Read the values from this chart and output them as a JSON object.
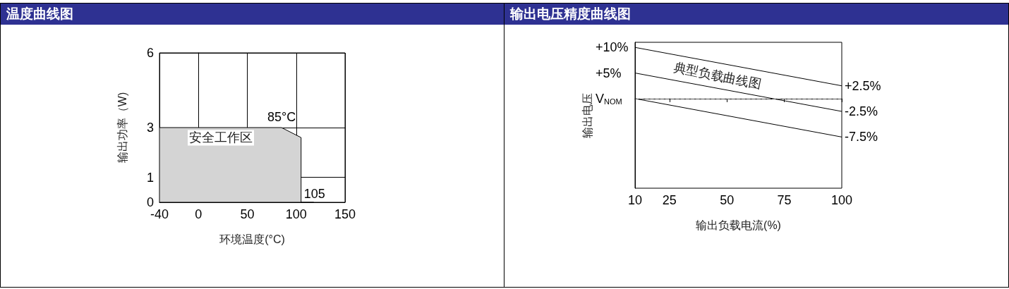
{
  "chart_data": [
    {
      "type": "area",
      "title": "温度曲线图",
      "xlabel": "环境温度(°C)",
      "ylabel": "输出功率（W)",
      "x": [
        -40,
        85,
        105,
        105,
        118
      ],
      "series": [
        {
          "color": "#000000",
          "values": [
            3,
            3,
            2.6,
            0,
            0
          ]
        }
      ],
      "xlim": [
        -40,
        150
      ],
      "xticks": [
        -40,
        0,
        50,
        100,
        150
      ],
      "ylim": [
        0,
        6
      ],
      "yticks": [
        0,
        1,
        3,
        6
      ],
      "grid": true,
      "marker": "none",
      "annotations": [
        {
          "text": "85°C",
          "x": 85,
          "y": 3
        },
        "安全工作区",
        {
          "text": "105",
          "x": 105,
          "y": 0
        }
      ]
    },
    {
      "type": "line",
      "title": "输出电压精度曲线图",
      "xlabel": "输出负载电流(%)",
      "ylabel": "输出电压",
      "x": [
        10,
        100
      ],
      "series": [
        {
          "color": "#000000",
          "values": [
            10,
            2.5
          ]
        },
        {
          "color": "#000000",
          "values": [
            5,
            -2.5
          ]
        },
        {
          "color": "#000000",
          "values": [
            0,
            -7.5
          ]
        }
      ],
      "xlim": [
        10,
        100
      ],
      "xticks": [
        10,
        25,
        50,
        75,
        100
      ],
      "ylim": [
        -17.5,
        11
      ],
      "yticks": [
        {
          "value": 10,
          "label": "+10%"
        },
        {
          "value": 5,
          "label": "+5%"
        },
        {
          "value": 0,
          "label": "V$_{NOM}$"
        }
      ],
      "grid": false,
      "marker": "none",
      "line_style": "solid",
      "ref_lines": [
        {
          "axis": "y",
          "value": 0,
          "label": null,
          "line_style": "dashed",
          "color": "#555555"
        }
      ],
      "annotations": [
        "典型负载曲线图",
        {
          "text": "+2.5%",
          "x": 100,
          "y": 2.5
        },
        {
          "text": "-2.5%",
          "x": 100,
          "y": -2.5
        },
        {
          "text": "-7.5%",
          "x": 100,
          "y": -7.5
        }
      ]
    }
  ]
}
